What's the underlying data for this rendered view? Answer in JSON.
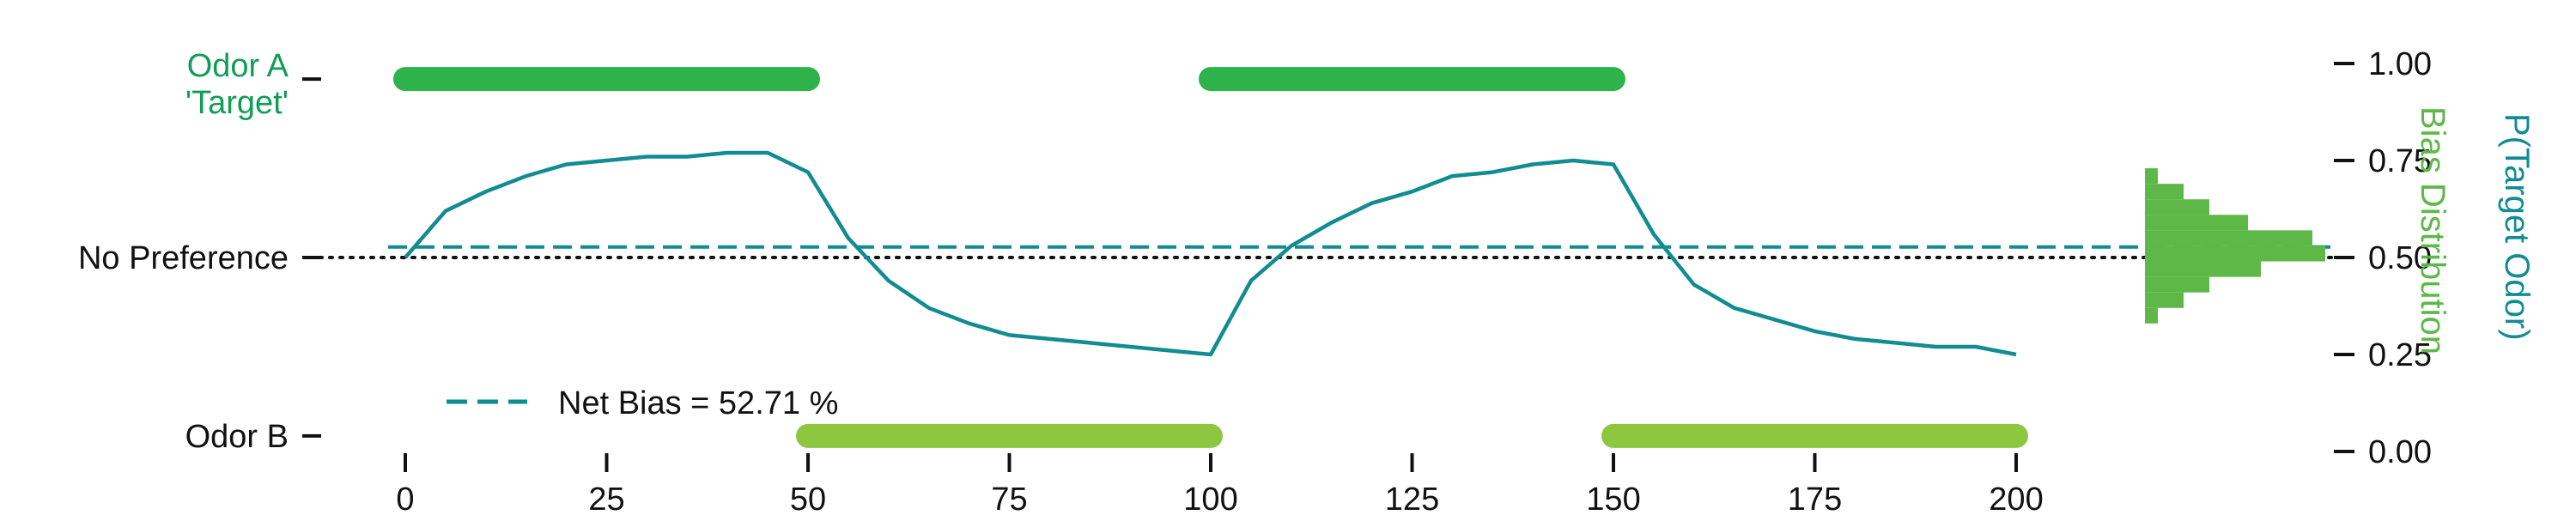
{
  "chart_data": {
    "type": "line",
    "title": "",
    "xlabel": "",
    "ylabel": "P(Target Odor)",
    "ylabel2": "Bias Distribution",
    "xlim": [
      -5,
      205
    ],
    "ylim": [
      0.0,
      1.0
    ],
    "x_ticks": [
      0,
      25,
      50,
      75,
      100,
      125,
      150,
      175,
      200
    ],
    "y_ticks": [
      0.0,
      0.25,
      0.5,
      0.75,
      1.0
    ],
    "y_tick_labels": [
      "0.00",
      "0.25",
      "0.50",
      "0.75",
      "1.00"
    ],
    "left_axis": [
      {
        "label": "Odor A",
        "label2": "'Target'",
        "y": 0.96,
        "color": "#0f9d58"
      },
      {
        "label": "No Preference",
        "y": 0.5,
        "color": "#111111"
      },
      {
        "label": "Odor B",
        "y": 0.04,
        "color": "#111111"
      }
    ],
    "odor_A_blocks": [
      [
        0,
        50
      ],
      [
        100,
        150
      ]
    ],
    "odor_B_blocks": [
      [
        50,
        100
      ],
      [
        150,
        200
      ]
    ],
    "odor_A_color": "#2db34a",
    "odor_B_color": "#8dc63f",
    "net_bias": 0.5271,
    "legend_label": "Net Bias = 52.71 %",
    "legend_position": "lower-left",
    "line_color": "#118c93",
    "hist_color": "#5db848",
    "grid": false,
    "series": [
      {
        "x": [
          0,
          5,
          10,
          15,
          20,
          25,
          30,
          35,
          40,
          45,
          50,
          55,
          60,
          65,
          70,
          75,
          80,
          85,
          90,
          95,
          100,
          105,
          110,
          115,
          120,
          125,
          130,
          135,
          140,
          145,
          150,
          155,
          160,
          165,
          170,
          175,
          180,
          185,
          190,
          195,
          200
        ],
        "values": [
          0.5,
          0.62,
          0.67,
          0.71,
          0.74,
          0.75,
          0.76,
          0.76,
          0.77,
          0.77,
          0.72,
          0.55,
          0.44,
          0.37,
          0.33,
          0.3,
          0.29,
          0.28,
          0.27,
          0.26,
          0.25,
          0.44,
          0.53,
          0.59,
          0.64,
          0.67,
          0.71,
          0.72,
          0.74,
          0.75,
          0.74,
          0.56,
          0.43,
          0.37,
          0.34,
          0.31,
          0.29,
          0.28,
          0.27,
          0.27,
          0.25
        ]
      }
    ],
    "histogram": {
      "bins": [
        0.33,
        0.37,
        0.41,
        0.45,
        0.49,
        0.53,
        0.57,
        0.61,
        0.65,
        0.69,
        0.73
      ],
      "counts": [
        1,
        3,
        5,
        9,
        14,
        13,
        8,
        5,
        3,
        1
      ]
    }
  }
}
